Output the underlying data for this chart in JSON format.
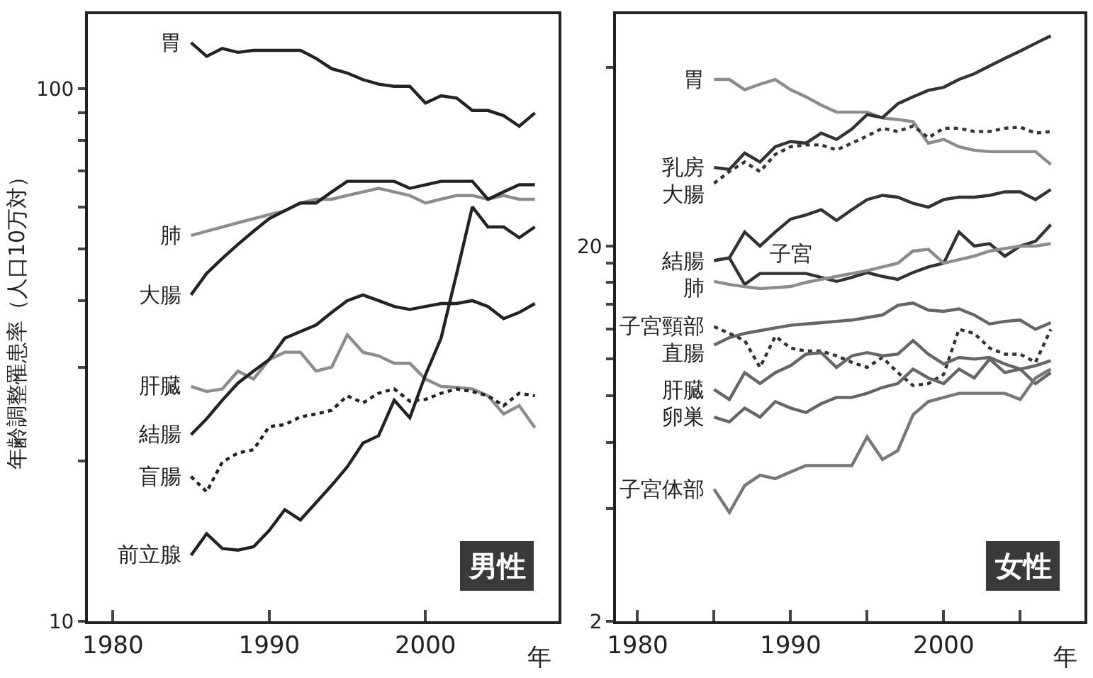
{
  "chart_data": [
    {
      "type": "line",
      "title": "男性",
      "xlabel": "年",
      "ylabel": "年齢調整罹患率（人口10万対）",
      "log": "y",
      "x": [
        1985,
        1986,
        1987,
        1988,
        1989,
        1990,
        1991,
        1992,
        1993,
        1994,
        1995,
        1996,
        1997,
        1998,
        1999,
        2000,
        2001,
        2002,
        2003,
        2004,
        2005,
        2006,
        2007
      ],
      "xlim": [
        1978.4,
        2008.5
      ],
      "xticks": [
        1980,
        1990,
        2000
      ],
      "ylim": [
        10,
        138
      ],
      "yticks": [
        10,
        {
          "value": 20,
          "label": null
        },
        {
          "value": 30,
          "label": null
        },
        {
          "value": 40,
          "label": null
        },
        {
          "value": 50,
          "label": null
        },
        {
          "value": 60,
          "label": null
        },
        {
          "value": 70,
          "label": null
        },
        {
          "value": 80,
          "label": null
        },
        {
          "value": 90,
          "label": null
        },
        100
      ],
      "series": [
        {
          "name": "胃",
          "color": "#222222",
          "values": [
            122,
            115,
            119,
            117,
            118,
            118,
            118,
            118,
            114,
            109,
            107,
            104,
            102,
            101,
            101,
            94,
            97,
            96,
            91,
            91,
            89,
            85,
            90
          ]
        },
        {
          "name": "肺",
          "color": "#8c8c8c",
          "values": [
            53,
            54,
            55,
            56,
            57,
            58,
            59,
            61,
            62,
            62,
            63,
            64,
            65,
            64,
            63,
            61,
            62,
            63,
            63,
            62,
            63,
            62,
            62
          ]
        },
        {
          "name": "大腸",
          "color": "#222222",
          "values": [
            41,
            45,
            48,
            51,
            54,
            57,
            59,
            61,
            61,
            64,
            67,
            67,
            67,
            67,
            65,
            66,
            67,
            67,
            67,
            62,
            64,
            66,
            66
          ]
        },
        {
          "name": "肝臓",
          "color": "#8c8c8c",
          "values": [
            27.6,
            27,
            27.3,
            29.5,
            28.5,
            31,
            32,
            32,
            29.5,
            30,
            34.5,
            32,
            31.5,
            30.5,
            30.5,
            28.5,
            27.6,
            27.5,
            27.3,
            26.5,
            24.5,
            25.4,
            23.1
          ]
        },
        {
          "name": "結腸",
          "color": "#222222",
          "values": [
            22.4,
            24,
            26,
            28,
            29.5,
            31,
            34,
            35,
            36,
            38,
            40,
            41,
            40,
            39,
            38.5,
            39,
            39.5,
            39.5,
            40,
            39,
            37,
            38,
            39.5
          ]
        },
        {
          "name": "盲腸",
          "color": "#222222",
          "line_style": "dotted",
          "values": [
            18.7,
            17.5,
            19.9,
            20.7,
            21,
            23.2,
            23.4,
            24.2,
            24.5,
            24.9,
            26.5,
            25.7,
            26.8,
            27.3,
            25.9,
            26.1,
            26.8,
            27.3,
            27,
            26.5,
            25.4,
            26.8,
            26.5
          ]
        },
        {
          "name": "前立腺",
          "color": "#222222",
          "values": [
            13.3,
            14.6,
            13.7,
            13.6,
            13.8,
            14.8,
            16.2,
            15.5,
            16.7,
            18,
            19.5,
            21.6,
            22.3,
            26,
            24.1,
            29,
            34,
            45,
            60,
            55,
            55,
            52.5,
            55
          ]
        }
      ]
    },
    {
      "type": "line",
      "title": "女性",
      "xlabel": "年",
      "log": "y",
      "x": [
        1985,
        1986,
        1987,
        1988,
        1989,
        1990,
        1991,
        1992,
        1993,
        1994,
        1995,
        1996,
        1997,
        1998,
        1999,
        2000,
        2001,
        2002,
        2003,
        2004,
        2005,
        2006,
        2007
      ],
      "xlim": [
        1978.6,
        2009.2
      ],
      "xticks": [
        1980,
        {
          "value": 1985,
          "label": null
        },
        1990,
        {
          "value": 1995,
          "label": null
        },
        2000,
        {
          "value": 2005,
          "label": null
        }
      ],
      "ylim": [
        2,
        83
      ],
      "yticks": [
        2,
        {
          "value": 4,
          "label": null
        },
        {
          "value": 6,
          "label": null
        },
        {
          "value": 8,
          "label": null
        },
        {
          "value": 10,
          "label": null
        },
        {
          "value": 12,
          "label": null
        },
        {
          "value": 14,
          "label": null
        },
        {
          "value": 16,
          "label": null
        },
        {
          "value": 18,
          "label": null
        },
        20,
        {
          "value": 60,
          "label": null
        }
      ],
      "series": [
        {
          "name": "胃",
          "color": "#8c8c8c",
          "values": [
            55.6,
            55.6,
            52.2,
            54,
            55.6,
            52.2,
            50,
            47.5,
            45.5,
            45.5,
            45.5,
            43.9,
            43.5,
            42.9,
            37.6,
            38.5,
            36.8,
            36,
            35.7,
            35.7,
            35.7,
            35.7,
            33
          ]
        },
        {
          "name": "乳房",
          "color": "#333333",
          "values": [
            32.4,
            32,
            35.4,
            33.5,
            36.8,
            38,
            37.6,
            40,
            38.5,
            41,
            44.8,
            44,
            47.9,
            50,
            52,
            53,
            55.6,
            57.6,
            60.4,
            63.3,
            66.2,
            69.4,
            72.7
          ]
        },
        {
          "name": "大腸",
          "color": "#333333",
          "line_style": "dotted",
          "values": [
            29.4,
            31.6,
            33.5,
            31.6,
            35.1,
            36.8,
            37.2,
            37.2,
            36.1,
            37.6,
            39.3,
            41.2,
            40.4,
            41.8,
            38.9,
            41.2,
            41.2,
            40.4,
            40.4,
            41.2,
            41.5,
            40,
            40.4
          ]
        },
        {
          "name": "結腸",
          "color": "#333333",
          "values": [
            18.3,
            18.6,
            21.8,
            20,
            21.8,
            23.6,
            24.2,
            25,
            23.4,
            25,
            26.6,
            27.3,
            27,
            26,
            25.4,
            26.6,
            27,
            27,
            27.3,
            27.9,
            27.9,
            26.6,
            28.3
          ]
        },
        {
          "name": "子宮",
          "color": "#333333",
          "values": [
            18.3,
            18.6,
            15.8,
            16.9,
            16.9,
            16.9,
            16.9,
            16.5,
            16.1,
            16.5,
            17,
            16.6,
            16.3,
            17,
            17.6,
            18,
            21.8,
            20,
            20.3,
            18.8,
            20,
            20.6,
            22.8
          ]
        },
        {
          "name": "肺",
          "color": "#8c8c8c",
          "values": [
            16.1,
            15.8,
            15.6,
            15.4,
            15.5,
            15.6,
            16,
            16.3,
            16.6,
            16.9,
            17.2,
            17.6,
            18,
            19.4,
            19.6,
            18,
            18.4,
            18.8,
            19.4,
            19.7,
            20,
            20,
            20.3
          ]
        },
        {
          "name": "直腸",
          "color": "#666666",
          "values": [
            10.9,
            11.4,
            11.7,
            11.9,
            12.1,
            12.3,
            12.4,
            12.5,
            12.6,
            12.7,
            12.9,
            13.1,
            13.9,
            14.1,
            13.5,
            13.4,
            13.6,
            13.1,
            12.4,
            12.6,
            12.7,
            12,
            12.5
          ]
        },
        {
          "name": "子宮頸部",
          "color": "#333333",
          "line_style": "dotted",
          "values": [
            12.2,
            11.7,
            11.2,
            9.5,
            11.5,
            10.7,
            10.5,
            10.5,
            10.2,
            9.8,
            9.5,
            10.1,
            9.2,
            8.5,
            8.6,
            9.1,
            12,
            11.7,
            10.7,
            10.3,
            10.3,
            9.8,
            12
          ]
        },
        {
          "name": "肝臓",
          "color": "#666666",
          "values": [
            8.3,
            7.8,
            9.2,
            8.6,
            9.2,
            9.6,
            10.3,
            10.4,
            9.5,
            10.2,
            10.4,
            10.2,
            10.3,
            11.2,
            10.3,
            9.7,
            10.1,
            10,
            10.1,
            9.7,
            9.4,
            9.6,
            9.9
          ]
        },
        {
          "name": "卵巣",
          "color": "#666666",
          "values": [
            7,
            6.8,
            7.4,
            7,
            7.7,
            7.4,
            7.2,
            7.6,
            7.9,
            7.9,
            8.1,
            8.4,
            8.6,
            9.4,
            8.9,
            8.6,
            9.4,
            8.9,
            10,
            9.2,
            9.4,
            8.6,
            9.2
          ]
        },
        {
          "name": "子宮体部",
          "color": "#777777",
          "values": [
            4.5,
            3.9,
            4.6,
            4.9,
            4.8,
            5,
            5.2,
            5.2,
            5.2,
            5.2,
            6.2,
            5.4,
            5.7,
            7.1,
            7.7,
            7.9,
            8.1,
            8.1,
            8.1,
            8.1,
            7.8,
            8.9,
            9.4
          ]
        }
      ]
    }
  ]
}
